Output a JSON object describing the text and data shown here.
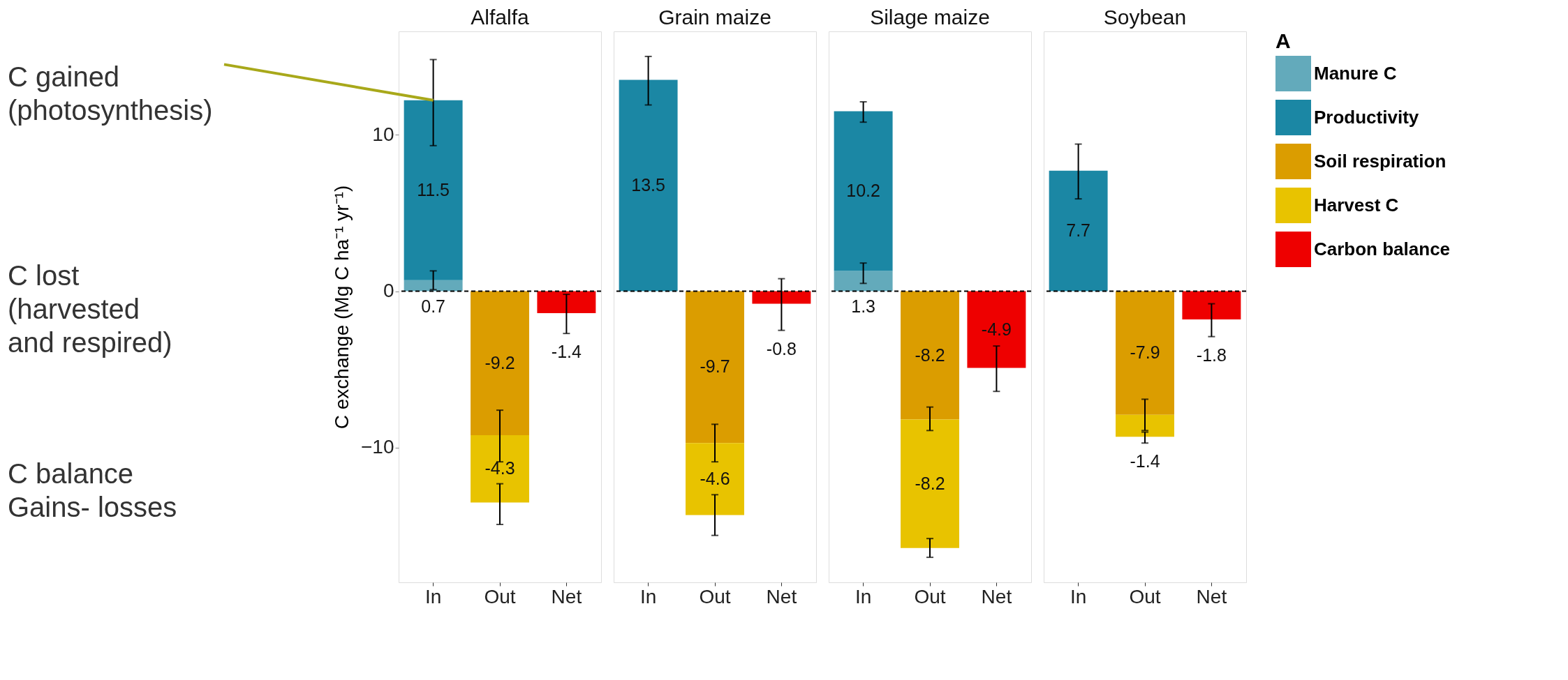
{
  "chart_data": [
    {
      "type": "bar",
      "title": "Alfalfa",
      "stacked": true,
      "categories": [
        "In",
        "Out",
        "Net"
      ],
      "ylim": [
        -18.6,
        16.6
      ],
      "yticks": [
        -10,
        0,
        10
      ],
      "ylabel": "C exchange (Mg C ha⁻¹ yr⁻¹)",
      "grid": false,
      "data_labels": true,
      "legend": "right",
      "ref_lines": [
        {
          "axis": "y",
          "value": 0,
          "line_style": "dashed"
        }
      ],
      "annotations": [
        {
          "text": "C gained\n(photosynthesis)",
          "x": "In",
          "y": 12.2
        },
        "C lost\n(harvested\nand respired)",
        "C balance\nGains- losses"
      ],
      "series": [
        {
          "name": "Manure C",
          "color": "#63aabb",
          "values": [
            0.7,
            null,
            null
          ],
          "errors": [
            [
              0.1,
              1.3
            ],
            null,
            null
          ]
        },
        {
          "name": "Productivity",
          "color": "#1b87a4",
          "values": [
            11.5,
            null,
            null
          ],
          "errors": [
            [
              9.3,
              14.8
            ],
            null,
            null
          ]
        },
        {
          "name": "Soil respiration",
          "color": "#db9d00",
          "values": [
            null,
            -9.2,
            null
          ],
          "errors": [
            null,
            [
              -10.9,
              -7.6
            ],
            null
          ]
        },
        {
          "name": "Harvest C",
          "color": "#e8c300",
          "values": [
            null,
            -4.3,
            null
          ],
          "errors": [
            null,
            [
              -14.9,
              -12.3
            ],
            null
          ]
        },
        {
          "name": "Carbon balance",
          "color": "#ee0000",
          "values": [
            null,
            null,
            -1.4
          ],
          "errors": [
            null,
            null,
            [
              -2.7,
              -0.2
            ]
          ]
        }
      ]
    },
    {
      "type": "bar",
      "title": "Grain maize",
      "stacked": true,
      "categories": [
        "In",
        "Out",
        "Net"
      ],
      "ylim": [
        -18.6,
        16.6
      ],
      "tick_labels": "x",
      "grid": false,
      "data_labels": true,
      "legend": "right",
      "ref_lines": [
        {
          "axis": "y",
          "value": 0,
          "line_style": "dashed"
        }
      ],
      "series": [
        {
          "name": "Manure C",
          "color": "#63aabb",
          "values": [
            null,
            null,
            null
          ]
        },
        {
          "name": "Productivity",
          "color": "#1b87a4",
          "values": [
            13.5,
            null,
            null
          ],
          "errors": [
            [
              11.9,
              15.0
            ],
            null,
            null
          ]
        },
        {
          "name": "Soil respiration",
          "color": "#db9d00",
          "values": [
            null,
            -9.7,
            null
          ],
          "errors": [
            null,
            [
              -10.9,
              -8.5
            ],
            null
          ]
        },
        {
          "name": "Harvest C",
          "color": "#e8c300",
          "values": [
            null,
            -4.6,
            null
          ],
          "errors": [
            null,
            [
              -15.6,
              -13.0
            ],
            null
          ]
        },
        {
          "name": "Carbon balance",
          "color": "#ee0000",
          "values": [
            null,
            null,
            -0.8
          ],
          "errors": [
            null,
            null,
            [
              -2.5,
              0.8
            ]
          ]
        }
      ]
    },
    {
      "type": "bar",
      "title": "Silage maize",
      "stacked": true,
      "categories": [
        "In",
        "Out",
        "Net"
      ],
      "ylim": [
        -18.6,
        16.6
      ],
      "tick_labels": "x",
      "grid": false,
      "data_labels": true,
      "legend": "right",
      "ref_lines": [
        {
          "axis": "y",
          "value": 0,
          "line_style": "dashed"
        }
      ],
      "series": [
        {
          "name": "Manure C",
          "color": "#63aabb",
          "values": [
            1.3,
            null,
            null
          ],
          "errors": [
            [
              0.5,
              1.8
            ],
            null,
            null
          ]
        },
        {
          "name": "Productivity",
          "color": "#1b87a4",
          "values": [
            10.2,
            null,
            null
          ],
          "errors": [
            [
              10.8,
              12.1
            ],
            null,
            null
          ]
        },
        {
          "name": "Soil respiration",
          "color": "#db9d00",
          "values": [
            null,
            -8.2,
            null
          ],
          "errors": [
            null,
            [
              -8.9,
              -7.4
            ],
            null
          ]
        },
        {
          "name": "Harvest C",
          "color": "#e8c300",
          "values": [
            null,
            -8.2,
            null
          ],
          "errors": [
            null,
            [
              -17.0,
              -15.8
            ],
            null
          ]
        },
        {
          "name": "Carbon balance",
          "color": "#ee0000",
          "values": [
            null,
            null,
            -4.9
          ],
          "errors": [
            null,
            null,
            [
              -6.4,
              -3.5
            ]
          ]
        }
      ]
    },
    {
      "type": "bar",
      "title": "Soybean",
      "stacked": true,
      "categories": [
        "In",
        "Out",
        "Net"
      ],
      "ylim": [
        -18.6,
        16.6
      ],
      "tick_labels": "x",
      "grid": false,
      "data_labels": true,
      "legend": "right",
      "legend_title": "A",
      "ref_lines": [
        {
          "axis": "y",
          "value": 0,
          "line_style": "dashed"
        }
      ],
      "series": [
        {
          "name": "Manure C",
          "color": "#63aabb",
          "values": [
            null,
            null,
            null
          ]
        },
        {
          "name": "Productivity",
          "color": "#1b87a4",
          "values": [
            7.7,
            null,
            null
          ],
          "errors": [
            [
              5.9,
              9.4
            ],
            null,
            null
          ]
        },
        {
          "name": "Soil respiration",
          "color": "#db9d00",
          "values": [
            null,
            -7.9,
            null
          ],
          "errors": [
            null,
            [
              -8.9,
              -6.9
            ],
            null
          ]
        },
        {
          "name": "Harvest C",
          "color": "#e8c300",
          "values": [
            null,
            -1.4,
            null
          ],
          "errors": [
            null,
            [
              -9.7,
              -9.0
            ],
            null
          ]
        },
        {
          "name": "Carbon balance",
          "color": "#ee0000",
          "values": [
            null,
            null,
            -1.8
          ],
          "errors": [
            null,
            null,
            [
              -2.9,
              -0.8
            ]
          ]
        }
      ]
    }
  ]
}
